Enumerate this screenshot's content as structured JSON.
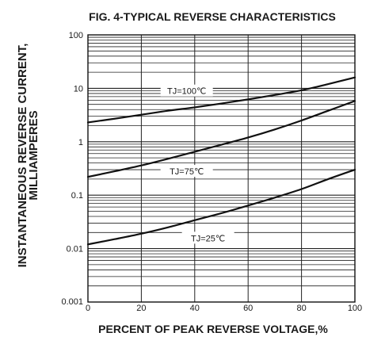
{
  "chart_data": {
    "type": "line",
    "title": "FIG. 4-TYPICAL REVERSE CHARACTERISTICS",
    "xlabel": "PERCENT OF PEAK REVERSE VOLTAGE,%",
    "ylabel_lines": [
      "INSTANTANEOUS REVERSE CURRENT,",
      "MILLIAMPERES"
    ],
    "x_scale": "linear",
    "y_scale": "log",
    "xlim": [
      0,
      100
    ],
    "ylim": [
      0.001,
      100
    ],
    "x_ticks": [
      0,
      20,
      40,
      60,
      80,
      100
    ],
    "x_tick_labels": [
      "0",
      "20",
      "40",
      "60",
      "80",
      "100"
    ],
    "y_ticks": [
      0.001,
      0.01,
      0.1,
      1,
      10,
      100
    ],
    "y_tick_labels": [
      "0.001",
      "0.01",
      "0.1",
      "1",
      "10",
      "100"
    ],
    "grid": true,
    "line_color": "#111111",
    "series": [
      {
        "name": "TJ=100℃",
        "x": [
          0,
          10,
          20,
          30,
          40,
          50,
          60,
          70,
          80,
          90,
          100
        ],
        "y": [
          2.3,
          2.7,
          3.2,
          3.8,
          4.4,
          5.2,
          6.2,
          7.5,
          9.2,
          12,
          16
        ]
      },
      {
        "name": "TJ=75℃",
        "x": [
          0,
          10,
          20,
          30,
          40,
          50,
          60,
          70,
          80,
          90,
          100
        ],
        "y": [
          0.22,
          0.28,
          0.36,
          0.48,
          0.65,
          0.88,
          1.2,
          1.7,
          2.5,
          3.8,
          5.8
        ]
      },
      {
        "name": "TJ=25℃",
        "x": [
          0,
          10,
          20,
          30,
          40,
          50,
          60,
          70,
          80,
          90,
          100
        ],
        "y": [
          0.012,
          0.015,
          0.019,
          0.025,
          0.034,
          0.046,
          0.064,
          0.09,
          0.13,
          0.2,
          0.3
        ]
      }
    ]
  }
}
